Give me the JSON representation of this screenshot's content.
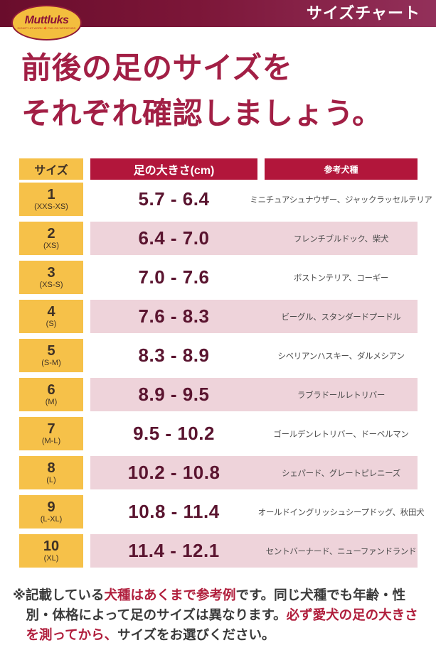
{
  "header": {
    "logo_text": "Muttluks",
    "logo_tagline": "DIGNITY AT WORK 🍁 FUN ON WEEKENDS",
    "title": "サイズチャート"
  },
  "heading": {
    "line1": "前後の足のサイズを",
    "line2": "それぞれ確認しましょう。"
  },
  "table": {
    "columns": {
      "size": "サイズ",
      "foot": "足の大きさ(cm)",
      "breeds": "参考犬種"
    },
    "rows": [
      {
        "size": "1",
        "size_range": "(XXS-XS)",
        "cm": "5.7 - 6.4",
        "breeds": "ミニチュアシュナウザー、ジャックラッセルテリア"
      },
      {
        "size": "2",
        "size_range": "(XS)",
        "cm": "6.4 - 7.0",
        "breeds": "フレンチブルドック、柴犬"
      },
      {
        "size": "3",
        "size_range": "(XS-S)",
        "cm": "7.0 - 7.6",
        "breeds": "ボストンテリア、コーギー"
      },
      {
        "size": "4",
        "size_range": "(S)",
        "cm": "7.6 - 8.3",
        "breeds": "ビーグル、スタンダードプードル"
      },
      {
        "size": "5",
        "size_range": "(S-M)",
        "cm": "8.3 - 8.9",
        "breeds": "シベリアンハスキー、ダルメシアン"
      },
      {
        "size": "6",
        "size_range": "(M)",
        "cm": "8.9 - 9.5",
        "breeds": "ラブラドールレトリバー"
      },
      {
        "size": "7",
        "size_range": "(M-L)",
        "cm": "9.5 - 10.2",
        "breeds": "ゴールデンレトリバー、ドーベルマン"
      },
      {
        "size": "8",
        "size_range": "(L)",
        "cm": "10.2 - 10.8",
        "breeds": "シェパード、グレートピレニーズ"
      },
      {
        "size": "9",
        "size_range": "(L-XL)",
        "cm": "10.8 - 11.4",
        "breeds": "オールドイングリッシュシープドッグ、秋田犬"
      },
      {
        "size": "10",
        "size_range": "(XL)",
        "cm": "11.4 - 12.1",
        "breeds": "セントバーナード、ニューファンドランド"
      }
    ]
  },
  "note": {
    "prefix": "※記載している",
    "red1": "犬種はあくまで参考例",
    "mid": "です。同じ犬種でも年齢・性別・体格によって足のサイズは異なります。",
    "red2": "必ず愛犬の足の大きさを測ってから、",
    "suffix": "サイズをお選びください。"
  },
  "colors": {
    "bar_left": "#6a0d2c",
    "bar_right": "#93305a",
    "crimson": "#b2163b",
    "yellow": "#f6c149",
    "pink_row": "#eed3da",
    "heading_red": "#a21f45",
    "number_maroon": "#5a142f",
    "note_red": "#b01e3c"
  },
  "chart_data": {
    "type": "table",
    "title": "サイズチャート",
    "columns": [
      "サイズ",
      "足の大きさ(cm)",
      "参考犬種"
    ],
    "rows": [
      [
        "1 (XXS-XS)",
        "5.7 - 6.4",
        "ミニチュアシュナウザー、ジャックラッセルテリア"
      ],
      [
        "2 (XS)",
        "6.4 - 7.0",
        "フレンチブルドック、柴犬"
      ],
      [
        "3 (XS-S)",
        "7.0 - 7.6",
        "ボストンテリア、コーギー"
      ],
      [
        "4 (S)",
        "7.6 - 8.3",
        "ビーグル、スタンダードプードル"
      ],
      [
        "5 (S-M)",
        "8.3 - 8.9",
        "シベリアンハスキー、ダルメシアン"
      ],
      [
        "6 (M)",
        "8.9 - 9.5",
        "ラブラドールレトリバー"
      ],
      [
        "7 (M-L)",
        "9.5 - 10.2",
        "ゴールデンレトリバー、ドーベルマン"
      ],
      [
        "8 (L)",
        "10.2 - 10.8",
        "シェパード、グレートピレニーズ"
      ],
      [
        "9 (L-XL)",
        "10.8 - 11.4",
        "オールドイングリッシュシープドッグ、秋田犬"
      ],
      [
        "10 (XL)",
        "11.4 - 12.1",
        "セントバーナード、ニューファンドランド"
      ]
    ]
  }
}
